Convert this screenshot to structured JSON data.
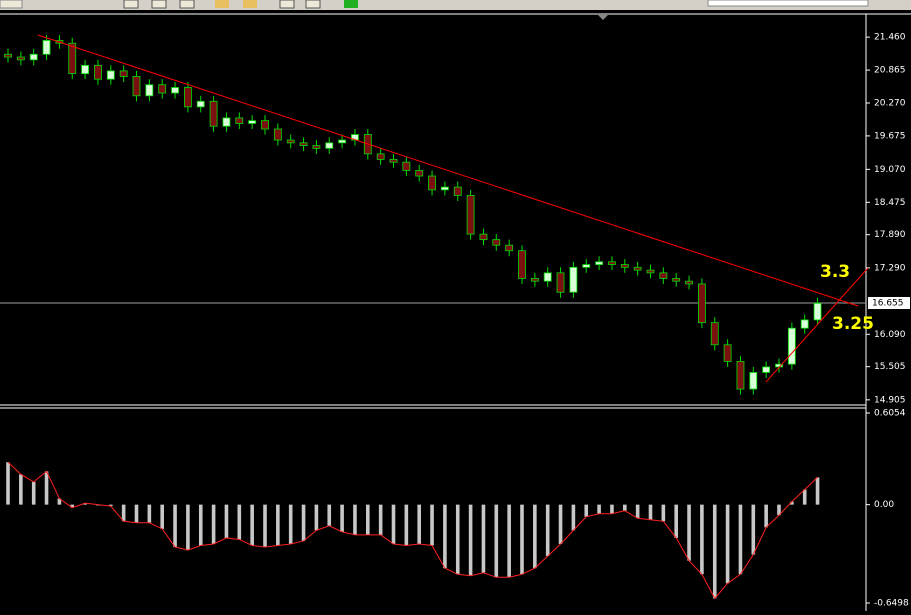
{
  "chart_data": [
    {
      "type": "candlestick",
      "open": [
        21.15,
        21.1,
        21.05,
        21.15,
        21.4,
        21.35,
        20.8,
        20.95,
        20.7,
        20.85,
        20.75,
        20.4,
        20.6,
        20.45,
        20.55,
        20.2,
        20.3,
        19.85,
        20.0,
        19.9,
        19.95,
        19.8,
        19.6,
        19.55,
        19.5,
        19.45,
        19.55,
        19.6,
        19.7,
        19.35,
        19.25,
        19.2,
        19.05,
        18.95,
        18.7,
        18.75,
        18.6,
        17.9,
        17.8,
        17.7,
        17.6,
        17.1,
        17.05,
        17.2,
        16.85,
        17.3,
        17.35,
        17.4,
        17.35,
        17.3,
        17.25,
        17.2,
        17.1,
        17.05,
        17.0,
        16.3,
        15.9,
        15.6,
        15.1,
        15.4,
        15.5,
        15.55,
        16.2,
        16.35
      ],
      "high": [
        21.25,
        21.2,
        21.25,
        21.5,
        21.5,
        21.45,
        21.05,
        21.05,
        20.95,
        20.95,
        20.85,
        20.7,
        20.7,
        20.65,
        20.65,
        20.4,
        20.4,
        20.1,
        20.1,
        20.05,
        20.05,
        19.9,
        19.7,
        19.65,
        19.6,
        19.65,
        19.7,
        19.8,
        19.8,
        19.45,
        19.35,
        19.3,
        19.15,
        19.05,
        18.85,
        18.85,
        18.7,
        18.0,
        17.9,
        17.8,
        17.7,
        17.2,
        17.3,
        17.3,
        17.4,
        17.45,
        17.5,
        17.5,
        17.45,
        17.4,
        17.35,
        17.3,
        17.2,
        17.15,
        17.1,
        16.4,
        16.0,
        15.7,
        15.5,
        15.6,
        15.65,
        16.3,
        16.45,
        16.75
      ],
      "low": [
        21.0,
        20.95,
        20.95,
        21.05,
        21.25,
        20.7,
        20.7,
        20.6,
        20.6,
        20.65,
        20.3,
        20.3,
        20.35,
        20.35,
        20.1,
        20.1,
        19.75,
        19.75,
        19.8,
        19.8,
        19.7,
        19.5,
        19.45,
        19.4,
        19.35,
        19.35,
        19.45,
        19.5,
        19.25,
        19.15,
        19.1,
        18.95,
        18.85,
        18.6,
        18.6,
        18.5,
        17.8,
        17.7,
        17.6,
        17.5,
        17.0,
        16.95,
        16.95,
        16.75,
        16.75,
        17.2,
        17.25,
        17.25,
        17.2,
        17.15,
        17.1,
        17.0,
        16.95,
        16.9,
        16.2,
        15.8,
        15.5,
        15.0,
        15.0,
        15.3,
        15.4,
        15.45,
        16.1,
        16.25
      ],
      "close": [
        21.1,
        21.05,
        21.15,
        21.4,
        21.35,
        20.8,
        20.95,
        20.7,
        20.85,
        20.75,
        20.4,
        20.6,
        20.45,
        20.55,
        20.2,
        20.3,
        19.85,
        20.0,
        19.9,
        19.95,
        19.8,
        19.6,
        19.55,
        19.5,
        19.45,
        19.55,
        19.6,
        19.7,
        19.35,
        19.25,
        19.2,
        19.05,
        18.95,
        18.7,
        18.75,
        18.6,
        17.9,
        17.8,
        17.7,
        17.6,
        17.1,
        17.05,
        17.2,
        16.85,
        17.3,
        17.35,
        17.4,
        17.35,
        17.3,
        17.25,
        17.2,
        17.1,
        17.05,
        17.0,
        16.3,
        15.9,
        15.6,
        15.1,
        15.4,
        15.5,
        15.55,
        16.2,
        16.35,
        16.65
      ],
      "ylim": [
        14.83,
        21.86
      ],
      "yticks": [
        {
          "value": 21.46,
          "label": "21.460"
        },
        20.865,
        {
          "value": 20.27,
          "label": "20.270"
        },
        19.675,
        {
          "value": 19.07,
          "label": "19.070"
        },
        18.475,
        {
          "value": 17.89,
          "label": "17.890"
        },
        {
          "value": 17.29,
          "label": "17.290"
        },
        {
          "value": 16.09,
          "label": "16.090"
        },
        15.505,
        14.905
      ],
      "current_price": 16.655,
      "annotations": [
        "3.3",
        "3.25"
      ],
      "up_color": "#d8ffd8",
      "down_color": "#7a1010",
      "wick_color": "#00e000"
    },
    {
      "type": "histogram",
      "values": [
        0.28,
        0.2,
        0.15,
        0.22,
        0.04,
        -0.02,
        0.01,
        0.0,
        -0.01,
        -0.11,
        -0.12,
        -0.12,
        -0.16,
        -0.28,
        -0.3,
        -0.27,
        -0.26,
        -0.22,
        -0.23,
        -0.27,
        -0.28,
        -0.27,
        -0.26,
        -0.24,
        -0.17,
        -0.14,
        -0.18,
        -0.2,
        -0.2,
        -0.2,
        -0.26,
        -0.27,
        -0.26,
        -0.27,
        -0.42,
        -0.46,
        -0.47,
        -0.45,
        -0.48,
        -0.48,
        -0.46,
        -0.42,
        -0.34,
        -0.26,
        -0.17,
        -0.08,
        -0.06,
        -0.06,
        -0.04,
        -0.09,
        -0.1,
        -0.11,
        -0.22,
        -0.37,
        -0.46,
        -0.62,
        -0.52,
        -0.46,
        -0.33,
        -0.15,
        -0.07,
        0.02,
        0.1,
        0.18
      ],
      "ylim": [
        -0.6498,
        0.6054
      ],
      "yticks": [
        0.6054,
        {
          "value": 0,
          "label": "0.00"
        },
        -0.6498
      ],
      "color": "#c8c8c8",
      "line_color": "#ff2020"
    }
  ]
}
